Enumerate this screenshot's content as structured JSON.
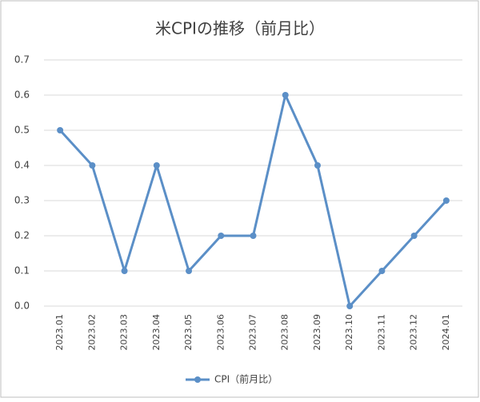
{
  "chart_data": {
    "type": "line",
    "title": "米CPIの推移（前月比）",
    "categories": [
      "2023.01",
      "2023.02",
      "2023.03",
      "2023.04",
      "2023.05",
      "2023.06",
      "2023.07",
      "2023.08",
      "2023.09",
      "2023.10",
      "2023.11",
      "2023.12",
      "2024.01"
    ],
    "series": [
      {
        "name": "CPI（前月比）",
        "color": "#5b8fc7",
        "values": [
          0.5,
          0.4,
          0.1,
          0.4,
          0.1,
          0.2,
          0.2,
          0.6,
          0.4,
          0.0,
          0.1,
          0.2,
          0.3
        ]
      }
    ],
    "ylim": [
      0,
      0.7
    ],
    "yticks": [
      {
        "value": 0,
        "label": "0.0"
      },
      0.1,
      0.2,
      0.3,
      0.4,
      0.5,
      0.6,
      0.7
    ],
    "grid": true,
    "legend": "bottom"
  }
}
